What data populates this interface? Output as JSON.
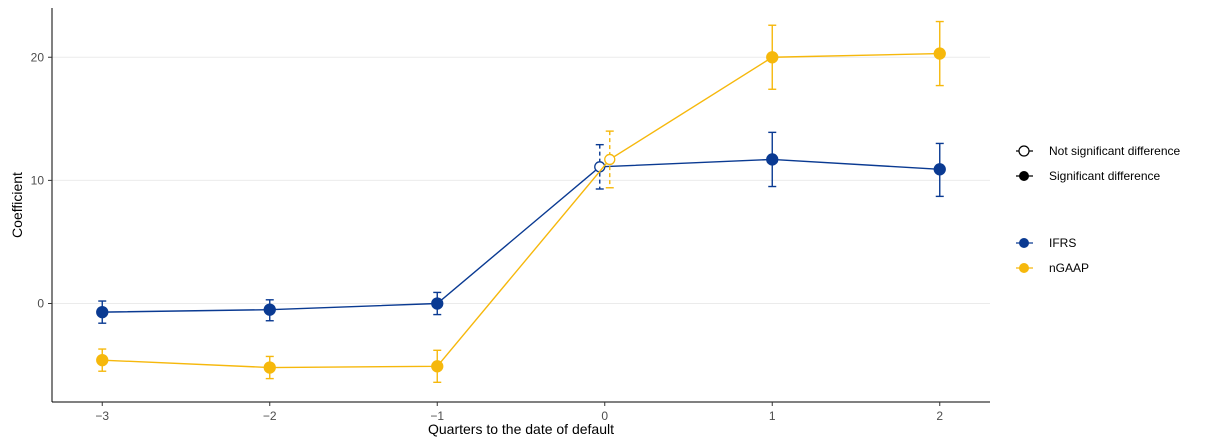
{
  "chart_data": {
    "type": "line",
    "title": "",
    "xlabel": "Quarters to the date of default",
    "ylabel": "Coefficient",
    "x": [
      -3,
      -2,
      -1,
      0,
      1,
      2
    ],
    "x_ticks": [
      -3,
      -2,
      -1,
      0,
      1,
      2
    ],
    "x_tick_labels": [
      "−3",
      "−2",
      "−1",
      "0",
      "1",
      "2"
    ],
    "xlim": [
      -3.3,
      2.3
    ],
    "y_ticks": [
      0,
      10,
      20
    ],
    "y_tick_labels": [
      "0",
      "10",
      "20"
    ],
    "ylim": [
      -8,
      24
    ],
    "grid": "horizontal major gridlines",
    "series": [
      {
        "name": "IFRS",
        "color": "#0a3a92",
        "values": [
          -0.7,
          -0.5,
          0.0,
          11.1,
          11.7,
          10.9
        ],
        "ci_low": [
          -1.6,
          -1.4,
          -0.9,
          9.3,
          9.5,
          8.7
        ],
        "ci_high": [
          0.2,
          0.3,
          0.9,
          12.9,
          13.9,
          13.0
        ],
        "significant": [
          true,
          true,
          true,
          false,
          true,
          true
        ]
      },
      {
        "name": "nGAAP",
        "color": "#f6b80c",
        "values": [
          -4.6,
          -5.2,
          -5.1,
          11.7,
          20.0,
          20.3
        ],
        "ci_low": [
          -5.5,
          -6.1,
          -6.4,
          9.4,
          17.4,
          17.7
        ],
        "ci_high": [
          -3.7,
          -4.3,
          -3.8,
          14.0,
          22.6,
          22.9
        ],
        "significant": [
          true,
          true,
          true,
          false,
          true,
          true
        ]
      }
    ],
    "legend": {
      "placement": "right",
      "significance": [
        {
          "label": "Not significant difference",
          "marker": "open"
        },
        {
          "label": "Significant difference",
          "marker": "filled"
        }
      ],
      "groups": [
        "IFRS",
        "nGAAP"
      ]
    }
  }
}
